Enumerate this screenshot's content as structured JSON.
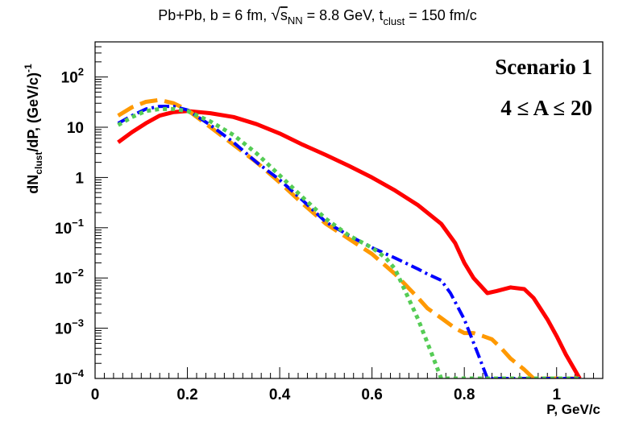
{
  "chart_data": {
    "type": "line",
    "title": {
      "prefix": "Pb+Pb, b = 6 fm, ",
      "sqrt_symbol": "√",
      "s_label": "s",
      "s_sub": "NN",
      "energy": " = 8.8 GeV, t",
      "t_sub": "clust",
      "time": " = 150 fm/c"
    },
    "xlabel": "P, GeV/c",
    "ylabel": {
      "dn": "dN",
      "sub": "clust",
      "rest": "/dP, (GeV/c)",
      "sup": "-1"
    },
    "xlim": [
      0,
      1.1
    ],
    "ylim": [
      0.0001,
      500
    ],
    "yscale": "log",
    "x_ticks": [
      {
        "value": 0,
        "label": "0"
      },
      {
        "value": 0.2,
        "label": "0.2"
      },
      {
        "value": 0.4,
        "label": "0.4"
      },
      {
        "value": 0.6,
        "label": "0.6"
      },
      {
        "value": 0.8,
        "label": "0.8"
      },
      {
        "value": 1.0,
        "label": "1"
      }
    ],
    "y_ticks": [
      {
        "value": 100,
        "base": "10",
        "exp": "2"
      },
      {
        "value": 10,
        "base": "10",
        "exp": ""
      },
      {
        "value": 1,
        "base": "1",
        "exp": ""
      },
      {
        "value": 0.1,
        "base": "10",
        "exp": "−1"
      },
      {
        "value": 0.01,
        "base": "10",
        "exp": "−2"
      },
      {
        "value": 0.001,
        "base": "10",
        "exp": "−3"
      },
      {
        "value": 0.0001,
        "base": "10",
        "exp": "−4"
      }
    ],
    "annotations": [
      "Scenario 1",
      "4 ≤ A ≤ 20"
    ],
    "series": [
      {
        "name": "red-solid",
        "color": "#ff0000",
        "dash": "",
        "width": 5,
        "x": [
          0.05,
          0.08,
          0.11,
          0.14,
          0.17,
          0.2,
          0.25,
          0.3,
          0.35,
          0.4,
          0.45,
          0.5,
          0.55,
          0.6,
          0.65,
          0.7,
          0.75,
          0.78,
          0.8,
          0.82,
          0.85,
          0.87,
          0.9,
          0.93,
          0.95,
          0.98,
          1.0,
          1.02,
          1.05
        ],
        "y": [
          5,
          8,
          12,
          17,
          20,
          21,
          19,
          16,
          11.5,
          7.5,
          4.5,
          2.8,
          1.7,
          1.0,
          0.55,
          0.28,
          0.12,
          0.05,
          0.02,
          0.01,
          0.005,
          0.0055,
          0.0065,
          0.006,
          0.004,
          0.0015,
          0.0007,
          0.0003,
          0.0001
        ]
      },
      {
        "name": "orange-dashed",
        "color": "#ff9900",
        "dash": "22,9",
        "width": 5,
        "x": [
          0.05,
          0.08,
          0.11,
          0.14,
          0.17,
          0.2,
          0.25,
          0.3,
          0.35,
          0.4,
          0.45,
          0.5,
          0.55,
          0.6,
          0.65,
          0.7,
          0.72,
          0.75,
          0.78,
          0.8,
          0.82,
          0.84,
          0.86,
          0.88,
          0.9,
          0.93,
          0.95,
          0.97,
          1.0,
          1.05
        ],
        "y": [
          17,
          25,
          32,
          35,
          30,
          22,
          10,
          4.5,
          2.0,
          0.8,
          0.3,
          0.12,
          0.06,
          0.03,
          0.012,
          0.004,
          0.0025,
          0.0016,
          0.001,
          0.0008,
          0.0008,
          0.0007,
          0.0006,
          0.0004,
          0.00025,
          0.00015,
          0.0001,
          0.0001,
          0.0001,
          0.0001
        ]
      },
      {
        "name": "blue-dashdot",
        "color": "#0000ff",
        "dash": "14,5,3,5",
        "width": 4,
        "x": [
          0.05,
          0.08,
          0.11,
          0.14,
          0.17,
          0.2,
          0.25,
          0.3,
          0.35,
          0.4,
          0.45,
          0.5,
          0.55,
          0.6,
          0.65,
          0.7,
          0.72,
          0.75,
          0.77,
          0.8,
          0.83,
          0.85,
          0.9,
          0.95,
          1.0,
          1.05
        ],
        "y": [
          12,
          17,
          23,
          26,
          26,
          22,
          11,
          5.0,
          2.0,
          0.9,
          0.35,
          0.13,
          0.07,
          0.04,
          0.025,
          0.015,
          0.012,
          0.009,
          0.005,
          0.0015,
          0.0003,
          0.0001,
          0.0001,
          0.0001,
          0.0001,
          0.0001
        ]
      },
      {
        "name": "green-dotted",
        "color": "#55cc55",
        "dash": "5,5",
        "width": 5,
        "x": [
          0.05,
          0.08,
          0.11,
          0.14,
          0.17,
          0.2,
          0.25,
          0.3,
          0.35,
          0.4,
          0.45,
          0.5,
          0.55,
          0.6,
          0.63,
          0.65,
          0.67,
          0.7,
          0.73,
          0.75,
          0.8,
          0.85,
          0.9,
          0.95,
          1.0,
          1.05
        ],
        "y": [
          11,
          16,
          21,
          23,
          23,
          21,
          13,
          7.0,
          3.0,
          1.1,
          0.4,
          0.15,
          0.07,
          0.04,
          0.025,
          0.015,
          0.006,
          0.0015,
          0.0003,
          0.0001,
          0.0001,
          0.0001,
          0.0001,
          0.0001,
          0.0001,
          0.0001
        ]
      }
    ]
  }
}
